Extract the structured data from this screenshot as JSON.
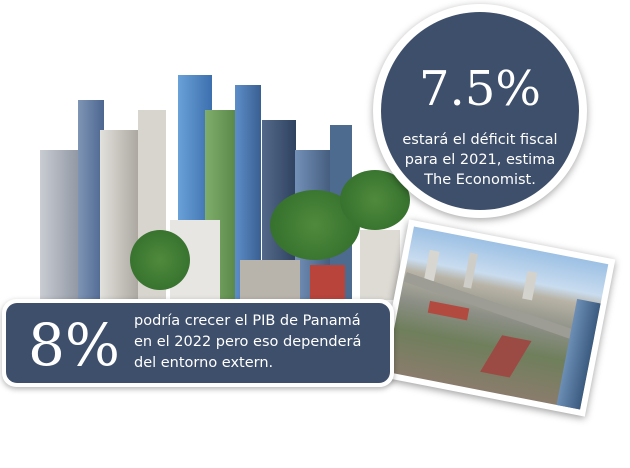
{
  "circle_stat": {
    "value": "7.5%",
    "lines": [
      "estará  el déficit fiscal",
      "para el 2021, estima",
      "The Economist."
    ]
  },
  "banner_stat": {
    "value": "8%",
    "lines": [
      "podría crecer el PIB de Panamá",
      "en el 2022 pero eso dependerá",
      "del  entorno extern."
    ]
  },
  "colors": {
    "panel": "#3e4f6b",
    "text": "#ffffff"
  }
}
